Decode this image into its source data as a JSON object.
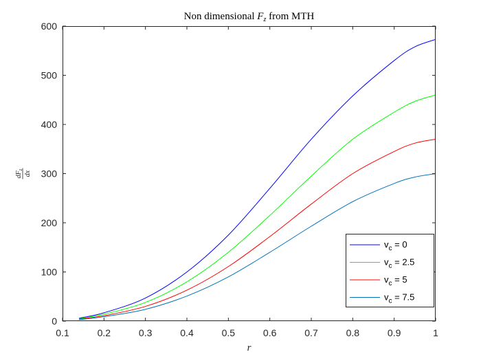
{
  "chart_data": {
    "type": "line",
    "title": "Non dimensional F_z from MTH",
    "title_parts": {
      "prefix": "Non dimensional ",
      "symbol": "F",
      "subscript": "z",
      "suffix": " from MTH"
    },
    "xlabel": "r",
    "ylabel": "dF_z/dx",
    "ylabel_parts": {
      "numerator": "dF",
      "numerator_sub": "z",
      "denominator": "dx"
    },
    "xlim": [
      0.1,
      1.0
    ],
    "ylim": [
      0,
      600
    ],
    "xticks": [
      0.1,
      0.2,
      0.3,
      0.4,
      0.5,
      0.6,
      0.7,
      0.8,
      0.9,
      1
    ],
    "xtick_labels": [
      "0.1",
      "0.2",
      "0.3",
      "0.4",
      "0.5",
      "0.6",
      "0.7",
      "0.8",
      "0.9",
      "1"
    ],
    "yticks": [
      0,
      100,
      200,
      300,
      400,
      500,
      600
    ],
    "ytick_labels": [
      "0",
      "100",
      "200",
      "300",
      "400",
      "500",
      "600"
    ],
    "grid": false,
    "legend_position": "bottom-right",
    "x": [
      0.14,
      0.2,
      0.3,
      0.4,
      0.5,
      0.6,
      0.7,
      0.8,
      0.9,
      0.95,
      1.0
    ],
    "series": [
      {
        "name": "v_c = 0",
        "legend_base": "v",
        "legend_sub": "c",
        "legend_suffix": " = 0",
        "color": "#0000ff",
        "values": [
          6,
          17,
          47,
          100,
          175,
          270,
          370,
          458,
          530,
          558,
          573
        ]
      },
      {
        "name": "v_c = 2.5",
        "legend_base": "v",
        "legend_sub": "c",
        "legend_suffix": " = 2.5",
        "color": "#00ff00",
        "values": [
          5,
          14,
          38,
          80,
          140,
          215,
          295,
          370,
          425,
          447,
          460
        ]
      },
      {
        "name": "v_c = 5",
        "legend_base": "v",
        "legend_sub": "c",
        "legend_suffix": " = 5",
        "color": "#ff0000",
        "values": [
          4,
          11,
          30,
          63,
          111,
          172,
          238,
          300,
          345,
          362,
          370
        ]
      },
      {
        "name": "v_c = 7.5",
        "legend_base": "v",
        "legend_sub": "c",
        "legend_suffix": " = 7.5",
        "color": "#0072bd",
        "values": [
          3,
          9,
          24,
          51,
          90,
          140,
          193,
          243,
          280,
          293,
          300
        ]
      }
    ]
  }
}
